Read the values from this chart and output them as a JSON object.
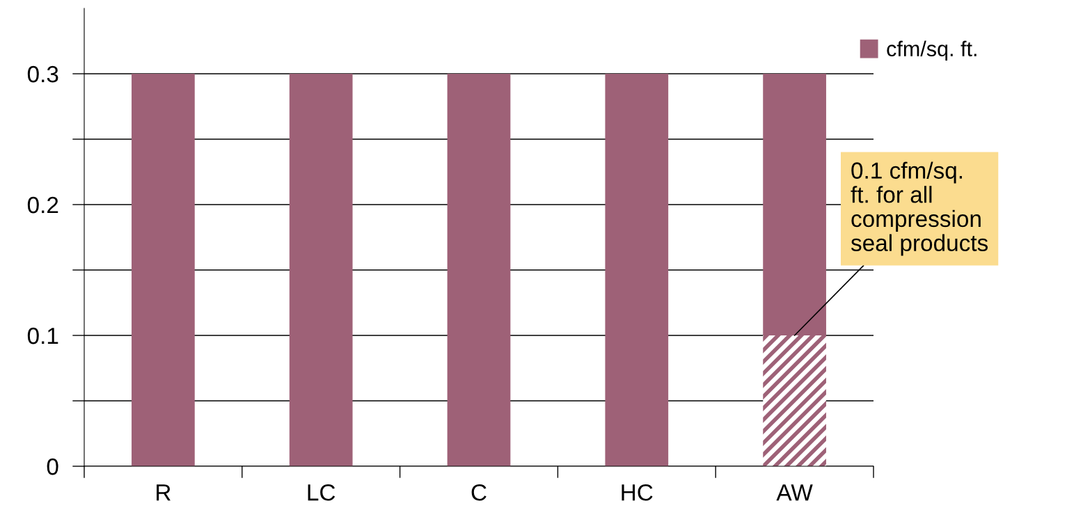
{
  "chart_data": {
    "type": "bar",
    "stacked": true,
    "categories": [
      "R",
      "LC",
      "C",
      "HC",
      "AW"
    ],
    "series": [
      {
        "color": "#9e6177",
        "values": [
          null,
          null,
          null,
          null,
          0.1
        ]
      },
      {
        "name": "cfm/sq. ft.",
        "color": "#9e6177",
        "values": [
          0.3,
          0.3,
          0.3,
          0.3,
          0.2
        ]
      }
    ],
    "ylim": [
      0,
      0.35
    ],
    "yticks": [
      0,
      {
        "value": 0.05,
        "label": null
      },
      0.1,
      {
        "value": 0.15,
        "label": null
      },
      0.2,
      {
        "value": 0.25,
        "label": null
      },
      0.3
    ],
    "grid": "y",
    "legend": "top right",
    "annotations": [
      {
        "text": "0.1 cfm/sq.\nft. for all\ncompression\nseal products",
        "x": "AW",
        "y": 0.1
      }
    ]
  }
}
